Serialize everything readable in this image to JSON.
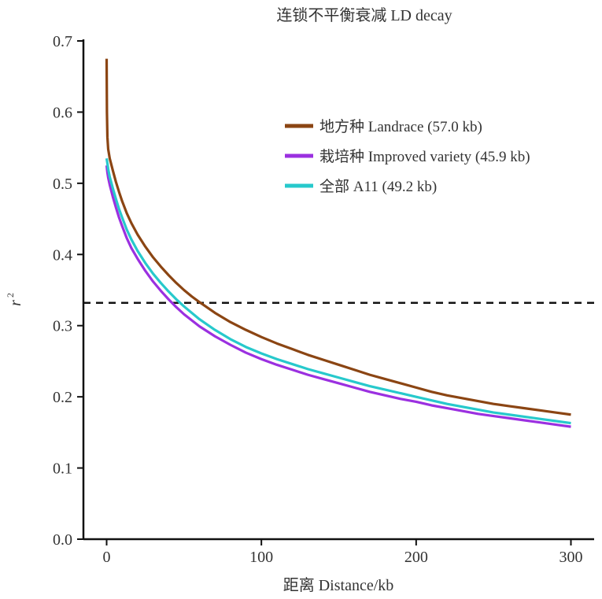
{
  "chart_data": {
    "type": "line",
    "title": "连锁不平衡衰减 LD decay",
    "xlabel": "距离 Distance/kb",
    "ylabel": "r",
    "ylabel_superscript": "2",
    "xlim": [
      -15,
      315
    ],
    "ylim": [
      0,
      0.7
    ],
    "xticks": [
      0,
      100,
      200,
      300
    ],
    "yticks": [
      0.0,
      0.1,
      0.2,
      0.3,
      0.4,
      0.5,
      0.6,
      0.7
    ],
    "xtick_labels": [
      "0",
      "100",
      "200",
      "300"
    ],
    "ytick_labels": [
      "0.0",
      "0.1",
      "0.2",
      "0.3",
      "0.4",
      "0.5",
      "0.6",
      "0.7"
    ],
    "grid": false,
    "legend_position": "top-right",
    "threshold_line": {
      "y": 0.332,
      "style": "dashed",
      "color": "#111111"
    },
    "series": [
      {
        "name": "地方种 Landrace (57.0 kb)",
        "color": "#8B4513",
        "x": [
          0,
          0.2,
          0.5,
          1,
          2,
          4,
          6,
          8,
          10,
          13,
          16,
          20,
          25,
          30,
          35,
          40,
          45,
          50,
          55,
          60,
          70,
          80,
          90,
          100,
          110,
          120,
          130,
          140,
          150,
          160,
          170,
          180,
          190,
          200,
          210,
          220,
          230,
          240,
          250,
          260,
          270,
          280,
          290,
          300
        ],
        "y": [
          0.675,
          0.6,
          0.565,
          0.548,
          0.535,
          0.518,
          0.502,
          0.488,
          0.475,
          0.458,
          0.444,
          0.428,
          0.411,
          0.396,
          0.383,
          0.371,
          0.36,
          0.35,
          0.341,
          0.333,
          0.318,
          0.305,
          0.294,
          0.284,
          0.275,
          0.267,
          0.259,
          0.252,
          0.245,
          0.238,
          0.231,
          0.225,
          0.219,
          0.213,
          0.207,
          0.202,
          0.198,
          0.194,
          0.19,
          0.187,
          0.184,
          0.181,
          0.178,
          0.175
        ]
      },
      {
        "name": "栽培种 Improved variety (45.9 kb)",
        "color": "#9B30E0",
        "x": [
          0,
          0.5,
          1,
          2,
          4,
          6,
          8,
          10,
          13,
          16,
          20,
          25,
          30,
          35,
          40,
          45,
          50,
          60,
          70,
          80,
          90,
          100,
          110,
          120,
          130,
          140,
          150,
          160,
          170,
          180,
          190,
          200,
          210,
          220,
          230,
          240,
          250,
          260,
          270,
          280,
          290,
          300
        ],
        "y": [
          0.525,
          0.515,
          0.508,
          0.498,
          0.481,
          0.466,
          0.452,
          0.44,
          0.423,
          0.409,
          0.394,
          0.377,
          0.362,
          0.349,
          0.337,
          0.326,
          0.316,
          0.299,
          0.285,
          0.273,
          0.262,
          0.253,
          0.245,
          0.238,
          0.231,
          0.225,
          0.219,
          0.213,
          0.207,
          0.202,
          0.197,
          0.193,
          0.188,
          0.184,
          0.18,
          0.176,
          0.173,
          0.17,
          0.167,
          0.164,
          0.161,
          0.158
        ]
      },
      {
        "name": "全部 A11 (49.2 kb)",
        "color": "#27C9CC",
        "x": [
          0,
          0.5,
          1,
          2,
          4,
          6,
          8,
          10,
          13,
          16,
          20,
          25,
          30,
          35,
          40,
          45,
          50,
          60,
          70,
          80,
          90,
          100,
          110,
          120,
          130,
          140,
          150,
          160,
          170,
          180,
          190,
          200,
          210,
          220,
          230,
          240,
          250,
          260,
          270,
          280,
          290,
          300
        ],
        "y": [
          0.535,
          0.528,
          0.52,
          0.509,
          0.493,
          0.478,
          0.464,
          0.452,
          0.435,
          0.421,
          0.405,
          0.388,
          0.373,
          0.36,
          0.348,
          0.337,
          0.327,
          0.309,
          0.294,
          0.281,
          0.27,
          0.261,
          0.253,
          0.246,
          0.239,
          0.233,
          0.227,
          0.221,
          0.215,
          0.21,
          0.205,
          0.2,
          0.195,
          0.19,
          0.186,
          0.182,
          0.178,
          0.175,
          0.172,
          0.169,
          0.166,
          0.163
        ]
      }
    ]
  }
}
